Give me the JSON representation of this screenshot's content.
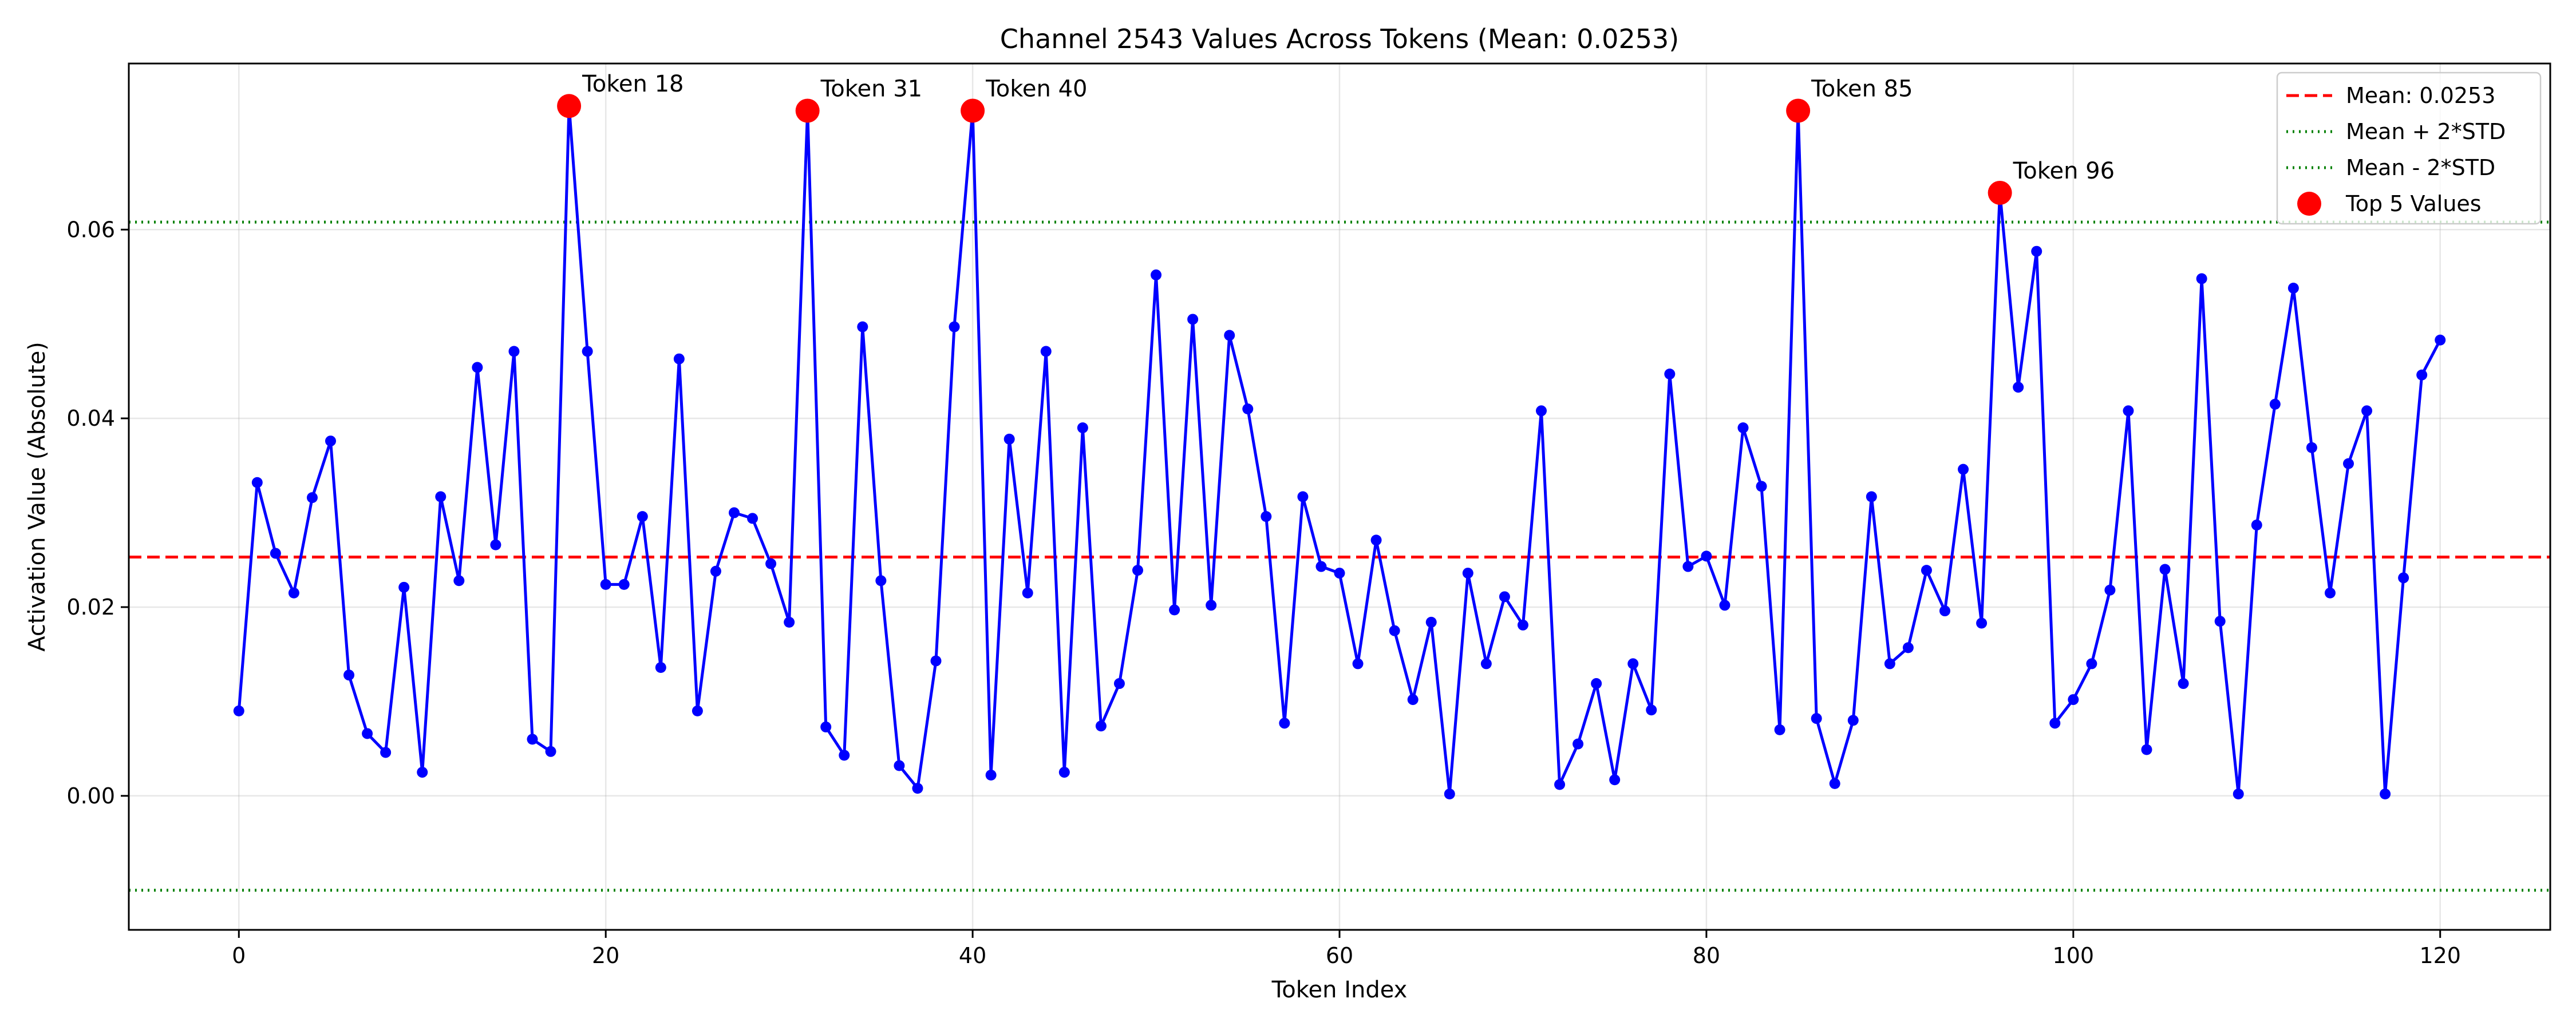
{
  "chart_data": {
    "type": "line",
    "title": "Channel 2543 Values Across Tokens (Mean: 0.0253)",
    "xlabel": "Token Index",
    "ylabel": "Activation Value (Absolute)",
    "xlim": [
      -6,
      126
    ],
    "ylim": [
      -0.0142,
      0.0776
    ],
    "xticks": [
      0,
      20,
      40,
      60,
      80,
      100,
      120
    ],
    "xtick_labels": [
      "0",
      "20",
      "40",
      "60",
      "80",
      "100",
      "120"
    ],
    "yticks": [
      0.0,
      0.02,
      0.04,
      0.06
    ],
    "ytick_labels": [
      "0.00",
      "0.02",
      "0.04",
      "0.06"
    ],
    "grid": true,
    "legend_position": "top-right",
    "series": [
      {
        "name": "",
        "color": "#0000ff",
        "values": [
          0.009,
          0.0332,
          0.0257,
          0.0215,
          0.0316,
          0.0376,
          0.0128,
          0.0066,
          0.0046,
          0.0221,
          0.0025,
          0.0317,
          0.0228,
          0.0454,
          0.0266,
          0.0471,
          0.006,
          0.0047,
          0.0731,
          0.0471,
          0.0224,
          0.0224,
          0.0296,
          0.0136,
          0.0463,
          0.009,
          0.0238,
          0.03,
          0.0294,
          0.0246,
          0.0184,
          0.0726,
          0.0073,
          0.0043,
          0.0497,
          0.0228,
          0.0032,
          0.0008,
          0.0143,
          0.0497,
          0.0726,
          0.0022,
          0.0378,
          0.0215,
          0.0471,
          0.0025,
          0.039,
          0.0074,
          0.0119,
          0.0239,
          0.0552,
          0.0197,
          0.0505,
          0.0202,
          0.0488,
          0.041,
          0.0296,
          0.0077,
          0.0317,
          0.0243,
          0.0236,
          0.014,
          0.0271,
          0.0175,
          0.0102,
          0.0184,
          0.0002,
          0.0236,
          0.014,
          0.0211,
          0.0181,
          0.0408,
          0.0012,
          0.0055,
          0.0119,
          0.0017,
          0.014,
          0.0091,
          0.0447,
          0.0243,
          0.0254,
          0.0202,
          0.039,
          0.0328,
          0.007,
          0.0726,
          0.0082,
          0.0013,
          0.008,
          0.0317,
          0.014,
          0.0157,
          0.0239,
          0.0196,
          0.0346,
          0.0183,
          0.0639,
          0.0433,
          0.0577,
          0.0077,
          0.0102,
          0.014,
          0.0218,
          0.0408,
          0.0049,
          0.024,
          0.0119,
          0.0548,
          0.0185,
          0.0002,
          0.0287,
          0.0415,
          0.0538,
          0.0369,
          0.0215,
          0.0352,
          0.0408,
          0.0002,
          0.0231,
          0.0446,
          0.0483
        ]
      }
    ],
    "reference_lines": [
      {
        "label": "Mean: 0.0253",
        "value": 0.0253,
        "color": "#ff0000",
        "style": "dashed"
      },
      {
        "label": "Mean + 2*STD",
        "value": 0.0608,
        "color": "#008000",
        "style": "dotted"
      },
      {
        "label": "Mean - 2*STD",
        "value": -0.01,
        "color": "#008000",
        "style": "dotted"
      }
    ],
    "top_values": {
      "legend_label": "Top 5 Values",
      "color": "#ff0000",
      "points": [
        {
          "x": 18,
          "y": 0.0731,
          "label": "Token 18"
        },
        {
          "x": 31,
          "y": 0.0726,
          "label": "Token 31"
        },
        {
          "x": 40,
          "y": 0.0726,
          "label": "Token 40"
        },
        {
          "x": 85,
          "y": 0.0726,
          "label": "Token 85"
        },
        {
          "x": 96,
          "y": 0.0639,
          "label": "Token 96"
        }
      ]
    }
  }
}
